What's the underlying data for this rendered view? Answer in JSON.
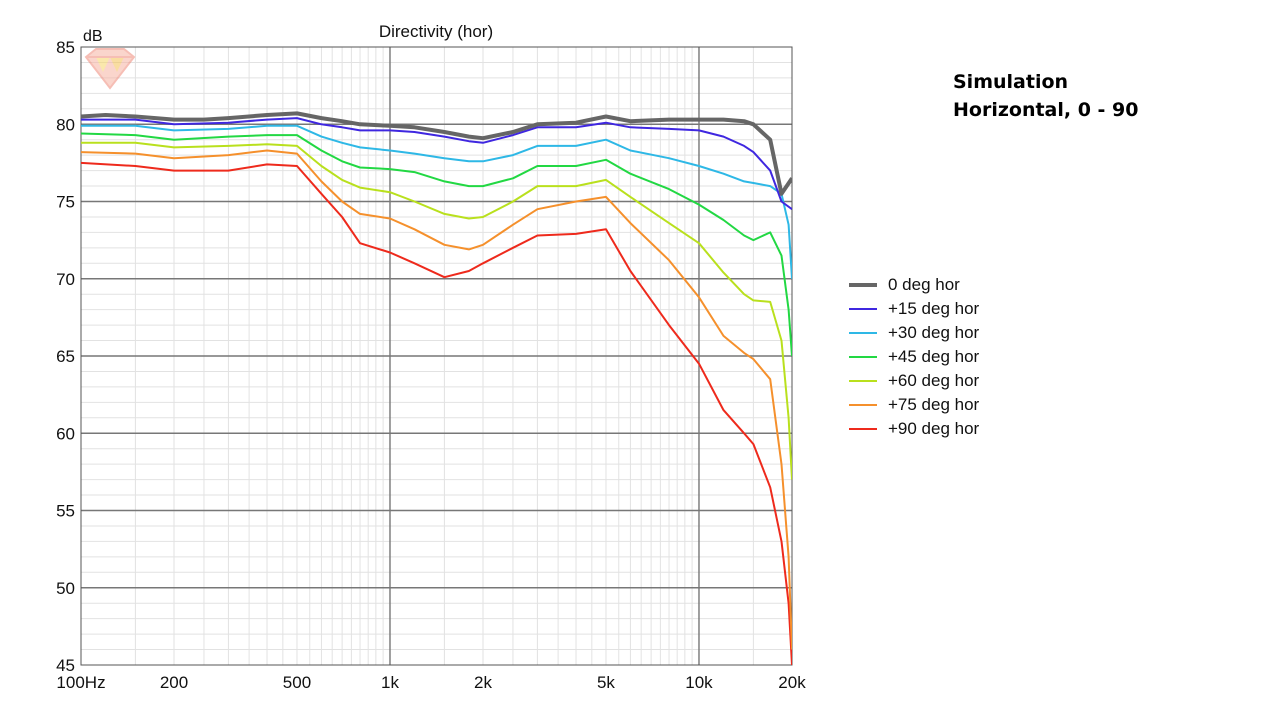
{
  "note": {
    "line1": "Simulation",
    "line2": "Horizontal, 0 - 90"
  },
  "chart_data": {
    "type": "line",
    "title": "Directivity (hor)",
    "xlabel": "",
    "ylabel": "dB",
    "x_scale": "log",
    "xlim": [
      100,
      20000
    ],
    "ylim": [
      45,
      85
    ],
    "x_ticks": [
      {
        "value": 100,
        "label": "100Hz"
      },
      {
        "value": 200,
        "label": "200"
      },
      {
        "value": 500,
        "label": "500"
      },
      {
        "value": 1000,
        "label": "1k"
      },
      {
        "value": 2000,
        "label": "2k"
      },
      {
        "value": 5000,
        "label": "5k"
      },
      {
        "value": 10000,
        "label": "10k"
      },
      {
        "value": 20000,
        "label": "20k"
      }
    ],
    "y_ticks": [
      {
        "value": 85,
        "label": "85"
      },
      {
        "value": 80,
        "label": "80"
      },
      {
        "value": 75,
        "label": "75"
      },
      {
        "value": 70,
        "label": "70"
      },
      {
        "value": 65,
        "label": "65"
      },
      {
        "value": 60,
        "label": "60"
      },
      {
        "value": 55,
        "label": "55"
      },
      {
        "value": 50,
        "label": "50"
      },
      {
        "value": 45,
        "label": "45"
      }
    ],
    "grid": true,
    "legend_position": "right",
    "series": [
      {
        "name": "0 deg hor",
        "color": "#666666",
        "width": 4,
        "points": [
          [
            100,
            80.5
          ],
          [
            120,
            80.6
          ],
          [
            150,
            80.5
          ],
          [
            200,
            80.3
          ],
          [
            250,
            80.3
          ],
          [
            300,
            80.4
          ],
          [
            400,
            80.6
          ],
          [
            500,
            80.7
          ],
          [
            600,
            80.4
          ],
          [
            700,
            80.2
          ],
          [
            800,
            80.0
          ],
          [
            1000,
            79.9
          ],
          [
            1200,
            79.8
          ],
          [
            1500,
            79.5
          ],
          [
            1800,
            79.2
          ],
          [
            2000,
            79.1
          ],
          [
            2500,
            79.5
          ],
          [
            3000,
            80.0
          ],
          [
            4000,
            80.1
          ],
          [
            5000,
            80.5
          ],
          [
            6000,
            80.2
          ],
          [
            8000,
            80.3
          ],
          [
            10000,
            80.3
          ],
          [
            12000,
            80.3
          ],
          [
            14000,
            80.2
          ],
          [
            15000,
            80.0
          ],
          [
            17000,
            79.0
          ],
          [
            18500,
            75.5
          ],
          [
            20000,
            76.5
          ]
        ]
      },
      {
        "name": "+15 deg hor",
        "color": "#3f27e0",
        "width": 2,
        "points": [
          [
            100,
            80.3
          ],
          [
            150,
            80.3
          ],
          [
            200,
            80.0
          ],
          [
            300,
            80.1
          ],
          [
            400,
            80.3
          ],
          [
            500,
            80.4
          ],
          [
            600,
            80.0
          ],
          [
            700,
            79.8
          ],
          [
            800,
            79.6
          ],
          [
            1000,
            79.6
          ],
          [
            1200,
            79.5
          ],
          [
            1500,
            79.2
          ],
          [
            1800,
            78.9
          ],
          [
            2000,
            78.8
          ],
          [
            2500,
            79.3
          ],
          [
            3000,
            79.8
          ],
          [
            4000,
            79.8
          ],
          [
            5000,
            80.1
          ],
          [
            6000,
            79.8
          ],
          [
            8000,
            79.7
          ],
          [
            10000,
            79.6
          ],
          [
            12000,
            79.2
          ],
          [
            14000,
            78.6
          ],
          [
            15000,
            78.2
          ],
          [
            17000,
            77.0
          ],
          [
            18500,
            75.0
          ],
          [
            20000,
            74.5
          ]
        ]
      },
      {
        "name": "+30 deg hor",
        "color": "#2eb8e6",
        "width": 2,
        "points": [
          [
            100,
            79.9
          ],
          [
            150,
            79.9
          ],
          [
            200,
            79.6
          ],
          [
            300,
            79.7
          ],
          [
            400,
            79.9
          ],
          [
            500,
            79.9
          ],
          [
            600,
            79.2
          ],
          [
            700,
            78.8
          ],
          [
            800,
            78.5
          ],
          [
            1000,
            78.3
          ],
          [
            1200,
            78.1
          ],
          [
            1500,
            77.8
          ],
          [
            1800,
            77.6
          ],
          [
            2000,
            77.6
          ],
          [
            2500,
            78.0
          ],
          [
            3000,
            78.6
          ],
          [
            4000,
            78.6
          ],
          [
            5000,
            79.0
          ],
          [
            6000,
            78.3
          ],
          [
            8000,
            77.8
          ],
          [
            10000,
            77.3
          ],
          [
            12000,
            76.8
          ],
          [
            14000,
            76.3
          ],
          [
            15000,
            76.2
          ],
          [
            17000,
            76.0
          ],
          [
            18500,
            75.5
          ],
          [
            19500,
            73.5
          ],
          [
            20000,
            70.0
          ]
        ]
      },
      {
        "name": "+45 deg hor",
        "color": "#22d843",
        "width": 2,
        "points": [
          [
            100,
            79.4
          ],
          [
            150,
            79.3
          ],
          [
            200,
            79.0
          ],
          [
            300,
            79.2
          ],
          [
            400,
            79.3
          ],
          [
            500,
            79.3
          ],
          [
            600,
            78.3
          ],
          [
            700,
            77.6
          ],
          [
            800,
            77.2
          ],
          [
            1000,
            77.1
          ],
          [
            1200,
            76.9
          ],
          [
            1500,
            76.3
          ],
          [
            1800,
            76.0
          ],
          [
            2000,
            76.0
          ],
          [
            2500,
            76.5
          ],
          [
            3000,
            77.3
          ],
          [
            4000,
            77.3
          ],
          [
            5000,
            77.7
          ],
          [
            6000,
            76.8
          ],
          [
            8000,
            75.8
          ],
          [
            10000,
            74.8
          ],
          [
            12000,
            73.8
          ],
          [
            14000,
            72.8
          ],
          [
            15000,
            72.5
          ],
          [
            17000,
            73.0
          ],
          [
            18500,
            71.5
          ],
          [
            19500,
            68.0
          ],
          [
            20000,
            65.0
          ]
        ]
      },
      {
        "name": "+60 deg hor",
        "color": "#b9e01d",
        "width": 2,
        "points": [
          [
            100,
            78.8
          ],
          [
            150,
            78.8
          ],
          [
            200,
            78.5
          ],
          [
            300,
            78.6
          ],
          [
            400,
            78.7
          ],
          [
            500,
            78.6
          ],
          [
            600,
            77.3
          ],
          [
            700,
            76.4
          ],
          [
            800,
            75.9
          ],
          [
            1000,
            75.6
          ],
          [
            1200,
            75.0
          ],
          [
            1500,
            74.2
          ],
          [
            1800,
            73.9
          ],
          [
            2000,
            74.0
          ],
          [
            2500,
            75.0
          ],
          [
            3000,
            76.0
          ],
          [
            4000,
            76.0
          ],
          [
            5000,
            76.4
          ],
          [
            6000,
            75.3
          ],
          [
            8000,
            73.6
          ],
          [
            10000,
            72.3
          ],
          [
            12000,
            70.4
          ],
          [
            14000,
            69.0
          ],
          [
            15000,
            68.6
          ],
          [
            17000,
            68.5
          ],
          [
            18500,
            66.0
          ],
          [
            19500,
            61.0
          ],
          [
            20000,
            57.0
          ]
        ]
      },
      {
        "name": "+75 deg hor",
        "color": "#f5902c",
        "width": 2,
        "points": [
          [
            100,
            78.2
          ],
          [
            150,
            78.1
          ],
          [
            200,
            77.8
          ],
          [
            300,
            78.0
          ],
          [
            400,
            78.3
          ],
          [
            500,
            78.1
          ],
          [
            600,
            76.3
          ],
          [
            700,
            75.0
          ],
          [
            800,
            74.2
          ],
          [
            1000,
            73.9
          ],
          [
            1200,
            73.2
          ],
          [
            1500,
            72.2
          ],
          [
            1800,
            71.9
          ],
          [
            2000,
            72.2
          ],
          [
            2500,
            73.5
          ],
          [
            3000,
            74.5
          ],
          [
            4000,
            75.0
          ],
          [
            5000,
            75.3
          ],
          [
            6000,
            73.6
          ],
          [
            8000,
            71.2
          ],
          [
            10000,
            68.8
          ],
          [
            12000,
            66.3
          ],
          [
            14000,
            65.2
          ],
          [
            15000,
            64.8
          ],
          [
            17000,
            63.5
          ],
          [
            18500,
            58.0
          ],
          [
            19500,
            52.0
          ],
          [
            20000,
            46.0
          ]
        ]
      },
      {
        "name": "+90 deg hor",
        "color": "#ee2a1c",
        "width": 2,
        "points": [
          [
            100,
            77.5
          ],
          [
            150,
            77.3
          ],
          [
            200,
            77.0
          ],
          [
            300,
            77.0
          ],
          [
            400,
            77.4
          ],
          [
            500,
            77.3
          ],
          [
            600,
            75.5
          ],
          [
            700,
            74.0
          ],
          [
            800,
            72.3
          ],
          [
            1000,
            71.7
          ],
          [
            1200,
            71.0
          ],
          [
            1500,
            70.1
          ],
          [
            1800,
            70.5
          ],
          [
            2000,
            71.0
          ],
          [
            2500,
            72.0
          ],
          [
            3000,
            72.8
          ],
          [
            4000,
            72.9
          ],
          [
            5000,
            73.2
          ],
          [
            6000,
            70.5
          ],
          [
            8000,
            67.0
          ],
          [
            10000,
            64.5
          ],
          [
            12000,
            61.5
          ],
          [
            14000,
            60.0
          ],
          [
            15000,
            59.3
          ],
          [
            17000,
            56.5
          ],
          [
            18500,
            53.0
          ],
          [
            19500,
            49.0
          ],
          [
            20000,
            45.0
          ]
        ]
      }
    ]
  }
}
